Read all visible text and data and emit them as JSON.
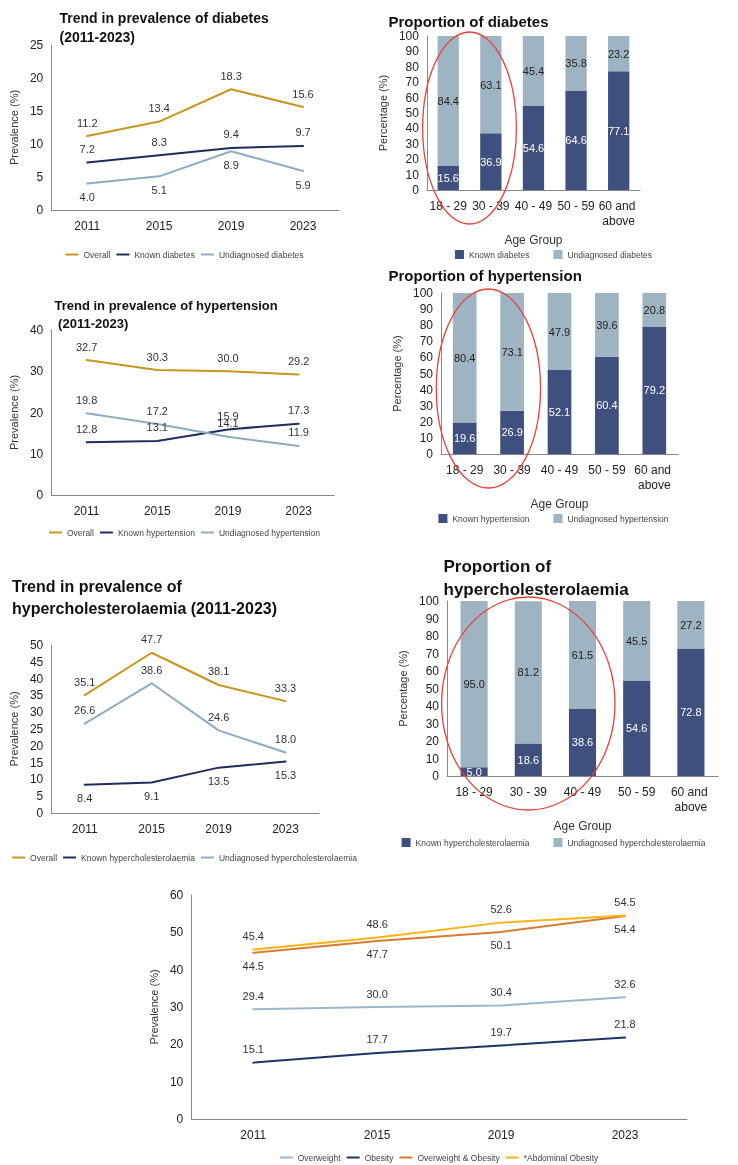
{
  "chart_data": [
    {
      "type": "line",
      "title": "Trend in prevalence of diabetes (2011-2023)",
      "categories": [
        "2011",
        "2015",
        "2019",
        "2023"
      ],
      "ylabel": "Prevalence (%)",
      "ylim": [
        0,
        25
      ],
      "yticks": [
        0,
        5,
        10,
        15,
        20,
        25
      ],
      "grid": false,
      "legend": "bottom",
      "marker": "none",
      "line_style": "solid",
      "series": [
        {
          "name": "Overall",
          "color": "#c8961e",
          "values": [
            11.2,
            13.4,
            18.3,
            15.6
          ],
          "value_labels": [
            "11.2",
            "13.4",
            "18.3",
            "15.6"
          ]
        },
        {
          "name": "Known diabetes",
          "color": "#1f2d5c",
          "values": [
            7.2,
            8.3,
            9.4,
            9.7
          ],
          "value_labels": [
            "7.2",
            "8.3",
            "9.4",
            "9.7"
          ]
        },
        {
          "name": "Undiagnosed diabetes",
          "color": "#8fabbf",
          "values": [
            4.0,
            5.1,
            8.9,
            5.9
          ],
          "value_labels": [
            "4.0",
            "5.1",
            "8.9",
            "5.9"
          ]
        }
      ]
    },
    {
      "type": "bar",
      "stacked": true,
      "title": "Proportion of diabetes",
      "categories": [
        "18 - 29",
        "30 - 39",
        "40 - 49",
        "50 - 59",
        "60 and above"
      ],
      "xlabel": "Age Group",
      "ylabel": "Percentage (%)",
      "ylim": [
        0,
        100
      ],
      "yticks": [
        0,
        10,
        20,
        30,
        40,
        50,
        60,
        70,
        80,
        90,
        100
      ],
      "grid": false,
      "legend": "bottom",
      "series": [
        {
          "name": "Known diabetes",
          "color": "#3f4f7e",
          "values": [
            15.6,
            36.9,
            54.6,
            64.6,
            77.1
          ],
          "value_labels": [
            "15.6",
            "36.9",
            "54.6",
            "64.6",
            "77.1"
          ]
        },
        {
          "name": "Undiagnosed diabetes",
          "color": "#9fb4c3",
          "values": [
            84.4,
            63.1,
            45.4,
            35.8,
            23.2
          ],
          "value_labels": [
            "84.4",
            "63.1",
            "45.4",
            "35.8",
            "23.2"
          ]
        }
      ]
    },
    {
      "type": "line",
      "title": "Trend in prevalence of hypertension (2011-2023)",
      "categories": [
        "2011",
        "2015",
        "2019",
        "2023"
      ],
      "ylabel": "Prevalence (%)",
      "ylim": [
        0,
        40
      ],
      "yticks": [
        0,
        10,
        20,
        30,
        40
      ],
      "grid": false,
      "legend": "bottom",
      "marker": "none",
      "line_style": "solid",
      "series": [
        {
          "name": "Overall",
          "color": "#c8961e",
          "values": [
            32.7,
            30.3,
            30.0,
            29.2
          ],
          "value_labels": [
            "32.7",
            "30.3",
            "30.0",
            "29.2"
          ]
        },
        {
          "name": "Known hypertension",
          "color": "#1f2d5c",
          "values": [
            12.8,
            13.1,
            15.9,
            17.3
          ],
          "value_labels": [
            "12.8",
            "13.1",
            "15.9",
            "17.3"
          ]
        },
        {
          "name": "Undiagnosed hypertension",
          "color": "#8fabbf",
          "values": [
            19.8,
            17.2,
            14.1,
            11.9
          ],
          "value_labels": [
            "19.8",
            "17.2",
            "14.1",
            "11.9"
          ]
        }
      ]
    },
    {
      "type": "bar",
      "stacked": true,
      "title": "Proportion of hypertension",
      "categories": [
        "18 - 29",
        "30 - 39",
        "40 - 49",
        "50 - 59",
        "60 and above"
      ],
      "xlabel": "Age Group",
      "ylabel": "Percentage (%)",
      "ylim": [
        0,
        100
      ],
      "yticks": [
        0,
        10,
        20,
        30,
        40,
        50,
        60,
        70,
        80,
        90,
        100
      ],
      "grid": false,
      "legend": "bottom",
      "series": [
        {
          "name": "Known hypertension",
          "color": "#3f4f7e",
          "values": [
            19.6,
            26.9,
            52.1,
            60.4,
            79.2
          ],
          "value_labels": [
            "19.6",
            "26.9",
            "52.1",
            "60.4",
            "79.2"
          ]
        },
        {
          "name": "Undiagnosed hypertension",
          "color": "#9fb4c3",
          "values": [
            80.4,
            73.1,
            47.9,
            39.6,
            20.8
          ],
          "value_labels": [
            "80.4",
            "73.1",
            "47.9",
            "39.6",
            "20.8"
          ]
        }
      ]
    },
    {
      "type": "line",
      "title": "Trend in prevalence of hypercholesterolaemia (2011-2023)",
      "categories": [
        "2011",
        "2015",
        "2019",
        "2023"
      ],
      "ylabel": "Prevalence (%)",
      "ylim": [
        0,
        50
      ],
      "yticks": [
        0,
        5,
        10,
        15,
        20,
        25,
        30,
        35,
        40,
        45,
        50
      ],
      "grid": false,
      "legend": "bottom",
      "marker": "none",
      "line_style": "solid",
      "series": [
        {
          "name": "Overall",
          "color": "#c8961e",
          "values": [
            35.1,
            47.7,
            38.1,
            33.3
          ],
          "value_labels": [
            "35.1",
            "47.7",
            "38.1",
            "33.3"
          ]
        },
        {
          "name": "Known hypercholesterolaemia",
          "color": "#1f2d5c",
          "values": [
            8.4,
            9.1,
            13.5,
            15.3
          ],
          "value_labels": [
            "8.4",
            "9.1",
            "13.5",
            "15.3"
          ]
        },
        {
          "name": "Undiagnosed hypercholesterolaemia",
          "color": "#8fabbf",
          "values": [
            26.6,
            38.6,
            24.6,
            18.0
          ],
          "value_labels": [
            "26.6",
            "38.6",
            "24.6",
            "18.0"
          ]
        }
      ]
    },
    {
      "type": "bar",
      "stacked": true,
      "title": "Proportion of hypercholesterolaemia",
      "categories": [
        "18 - 29",
        "30 - 39",
        "40 - 49",
        "50 - 59",
        "60 and above"
      ],
      "xlabel": "Age Group",
      "ylabel": "Percentage (%)",
      "ylim": [
        0,
        100
      ],
      "yticks": [
        0,
        10,
        20,
        30,
        40,
        50,
        60,
        70,
        80,
        90,
        100
      ],
      "grid": false,
      "legend": "bottom",
      "series": [
        {
          "name": "Known hypercholesterolaemia",
          "color": "#3f4f7e",
          "values": [
            5.0,
            18.6,
            38.6,
            54.6,
            72.8
          ],
          "value_labels": [
            "5.0",
            "18.6",
            "38.6",
            "54.6",
            "72.8"
          ]
        },
        {
          "name": "Undiagnosed hypercholesterolaemia",
          "color": "#9fb4c3",
          "values": [
            95.0,
            81.2,
            61.5,
            45.5,
            27.2
          ],
          "value_labels": [
            "95.0",
            "81.2",
            "61.5",
            "45.5",
            "27.2"
          ]
        }
      ]
    },
    {
      "type": "line",
      "categories": [
        "2011",
        "2015",
        "2019",
        "2023"
      ],
      "ylabel": "Prevalence (%)",
      "ylim": [
        0,
        60
      ],
      "yticks": [
        0,
        10,
        20,
        30,
        40,
        50,
        60
      ],
      "grid": false,
      "legend": "bottom",
      "marker": "none",
      "line_style": "solid",
      "series": [
        {
          "name": "Overweight",
          "color": "#9ab7c8",
          "values": [
            29.4,
            30.0,
            30.4,
            32.6
          ],
          "value_labels": [
            "29.4",
            "30.0",
            "30.4",
            "32.6"
          ]
        },
        {
          "name": "Obesity",
          "color": "#1f3464",
          "values": [
            15.1,
            17.7,
            19.7,
            21.8
          ],
          "value_labels": [
            "15.1",
            "17.7",
            "19.7",
            "21.8"
          ]
        },
        {
          "name": "Overweight & Obesity",
          "color": "#d87a30",
          "values": [
            44.5,
            47.7,
            50.1,
            54.4
          ],
          "value_labels": [
            "44.5",
            "47.7",
            "50.1",
            "54.4"
          ]
        },
        {
          "name": "*Abdominal Obesity",
          "color": "#fbb414",
          "values": [
            45.4,
            48.6,
            52.6,
            54.5
          ],
          "value_labels": [
            "45.4",
            "48.6",
            "52.6",
            "54.5"
          ]
        }
      ]
    }
  ]
}
